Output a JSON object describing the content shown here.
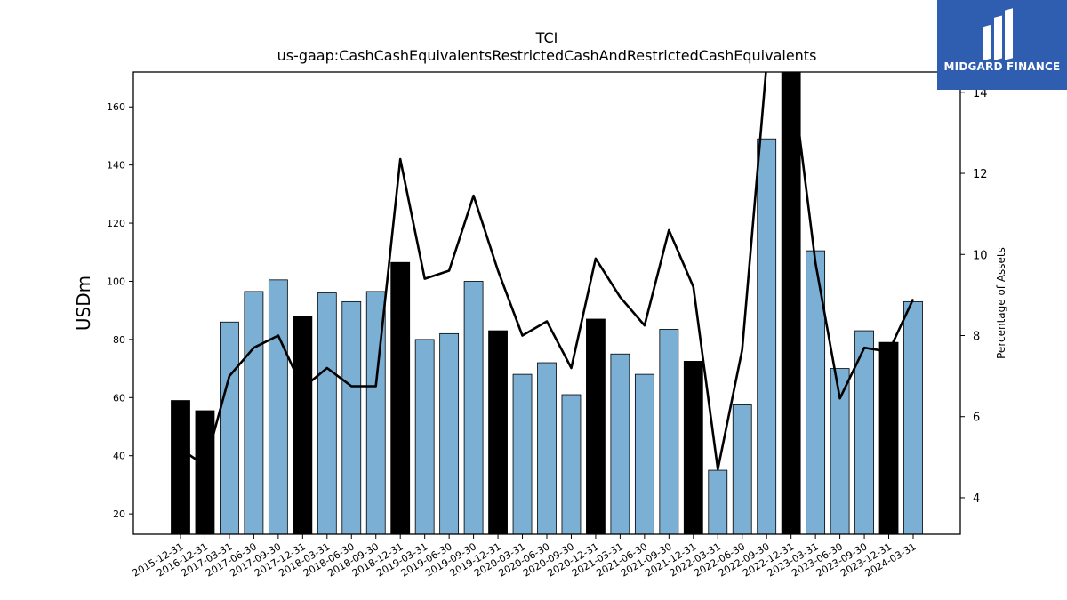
{
  "logo": {
    "text": "MIDGARD FINANCE",
    "icon": "midgard-m-logo-icon",
    "bg_color": "#2f5db0"
  },
  "chart_data": {
    "type": "bar",
    "title": "TCI",
    "subtitle": "us-gaap:CashCashEquivalentsRestrictedCashAndRestrictedCashEquivalents",
    "ylabel": "USDm",
    "y2label": "Percentage of Assets",
    "ylim": [
      13,
      172
    ],
    "y2lim": [
      3.1,
      14.5
    ],
    "yticks": [
      20,
      40,
      60,
      80,
      100,
      120,
      140,
      160
    ],
    "y2ticks": [
      4,
      6,
      8,
      10,
      12,
      14
    ],
    "categories": [
      "2015-12-31",
      "2016-12-31",
      "2017-03-31",
      "2017-06-30",
      "2017-09-30",
      "2017-12-31",
      "2018-03-31",
      "2018-06-30",
      "2018-09-30",
      "2018-12-31",
      "2019-03-31",
      "2019-06-30",
      "2019-09-30",
      "2019-12-31",
      "2020-03-31",
      "2020-06-30",
      "2020-09-30",
      "2020-12-31",
      "2021-03-31",
      "2021-06-30",
      "2021-09-30",
      "2021-12-31",
      "2022-03-31",
      "2022-06-30",
      "2022-09-30",
      "2022-12-31",
      "2023-03-31",
      "2023-06-30",
      "2023-09-30",
      "2023-12-31",
      "2024-03-31"
    ],
    "series": [
      {
        "type": "bar",
        "values": [
          59,
          55.5,
          86,
          96.5,
          100.5,
          88,
          96,
          93,
          96.5,
          106.5,
          80,
          82,
          100,
          83,
          68,
          72,
          61,
          87,
          75,
          68,
          83.5,
          72.5,
          35,
          57.5,
          149,
          172,
          110.5,
          70,
          83,
          79,
          93
        ],
        "year_end_color": "#000000",
        "quarter_color": "#7bafd4"
      },
      {
        "type": "line",
        "axis": "right",
        "values": [
          5.2,
          4.8,
          7.0,
          7.7,
          8.0,
          6.7,
          7.2,
          6.75,
          6.75,
          12.35,
          9.4,
          9.6,
          11.45,
          9.6,
          8.0,
          8.35,
          7.2,
          9.9,
          8.95,
          8.25,
          10.6,
          9.2,
          4.7,
          7.65,
          14.7,
          14.6,
          9.8,
          6.45,
          7.7,
          7.6,
          8.9
        ],
        "color": "#000000"
      }
    ],
    "grid": false,
    "legend": "none"
  }
}
